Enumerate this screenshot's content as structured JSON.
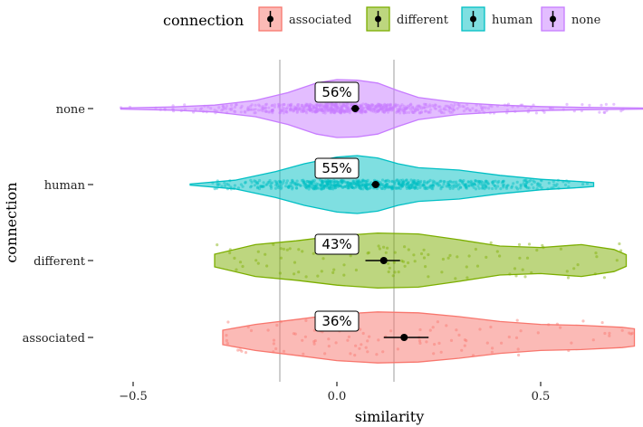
{
  "chart_data": {
    "type": "violin",
    "title": "",
    "xlabel": "similarity",
    "ylabel": "connection",
    "xlim": [
      -0.53,
      0.75
    ],
    "x_ticks": [
      -0.5,
      0.0,
      0.5
    ],
    "x_tick_labels": [
      "−0.5",
      "0.0",
      "0.5"
    ],
    "reference_lines_x": [
      -0.14,
      0.14
    ],
    "grid": false,
    "legend": {
      "title": "connection",
      "position": "top",
      "entries": [
        "associated",
        "different",
        "human",
        "none"
      ]
    },
    "categories": [
      "none",
      "human",
      "different",
      "associated"
    ],
    "series": [
      {
        "name": "none",
        "color": "#C77CFF",
        "mean": 0.045,
        "ci": [
          0.035,
          0.055
        ],
        "percent_label": "56%",
        "range": [
          -0.53,
          0.75
        ],
        "density_profile": [
          [
            -0.53,
            0.02
          ],
          [
            -0.4,
            0.06
          ],
          [
            -0.3,
            0.12
          ],
          [
            -0.2,
            0.28
          ],
          [
            -0.12,
            0.55
          ],
          [
            -0.05,
            0.88
          ],
          [
            0.0,
            1.0
          ],
          [
            0.05,
            0.98
          ],
          [
            0.1,
            0.88
          ],
          [
            0.15,
            0.62
          ],
          [
            0.2,
            0.38
          ],
          [
            0.3,
            0.2
          ],
          [
            0.4,
            0.12
          ],
          [
            0.5,
            0.07
          ],
          [
            0.6,
            0.04
          ],
          [
            0.75,
            0.02
          ]
        ]
      },
      {
        "name": "human",
        "color": "#00BFC4",
        "mean": 0.095,
        "ci": [
          0.085,
          0.105
        ],
        "percent_label": "55%",
        "range": [
          -0.36,
          0.63
        ],
        "density_profile": [
          [
            -0.36,
            0.02
          ],
          [
            -0.25,
            0.15
          ],
          [
            -0.15,
            0.45
          ],
          [
            -0.08,
            0.72
          ],
          [
            0.0,
            0.95
          ],
          [
            0.05,
            1.0
          ],
          [
            0.1,
            0.92
          ],
          [
            0.15,
            0.72
          ],
          [
            0.2,
            0.58
          ],
          [
            0.3,
            0.5
          ],
          [
            0.4,
            0.32
          ],
          [
            0.5,
            0.18
          ],
          [
            0.6,
            0.1
          ],
          [
            0.63,
            0.07
          ]
        ]
      },
      {
        "name": "different",
        "color": "#7CAE00",
        "mean": 0.115,
        "ci": [
          0.07,
          0.155
        ],
        "percent_label": "43%",
        "range": [
          -0.3,
          0.71
        ],
        "density_profile": [
          [
            -0.3,
            0.22
          ],
          [
            -0.2,
            0.55
          ],
          [
            -0.1,
            0.68
          ],
          [
            0.0,
            0.85
          ],
          [
            0.1,
            0.95
          ],
          [
            0.2,
            0.92
          ],
          [
            0.3,
            0.72
          ],
          [
            0.4,
            0.5
          ],
          [
            0.5,
            0.45
          ],
          [
            0.6,
            0.55
          ],
          [
            0.68,
            0.38
          ],
          [
            0.71,
            0.2
          ]
        ]
      },
      {
        "name": "associated",
        "color": "#F8766D",
        "mean": 0.165,
        "ci": [
          0.115,
          0.225
        ],
        "percent_label": "36%",
        "range": [
          -0.28,
          0.73
        ],
        "density_profile": [
          [
            -0.28,
            0.25
          ],
          [
            -0.2,
            0.45
          ],
          [
            -0.1,
            0.62
          ],
          [
            0.0,
            0.8
          ],
          [
            0.1,
            0.88
          ],
          [
            0.2,
            0.85
          ],
          [
            0.3,
            0.72
          ],
          [
            0.4,
            0.55
          ],
          [
            0.5,
            0.45
          ],
          [
            0.6,
            0.42
          ],
          [
            0.7,
            0.35
          ],
          [
            0.73,
            0.3
          ]
        ]
      }
    ]
  }
}
